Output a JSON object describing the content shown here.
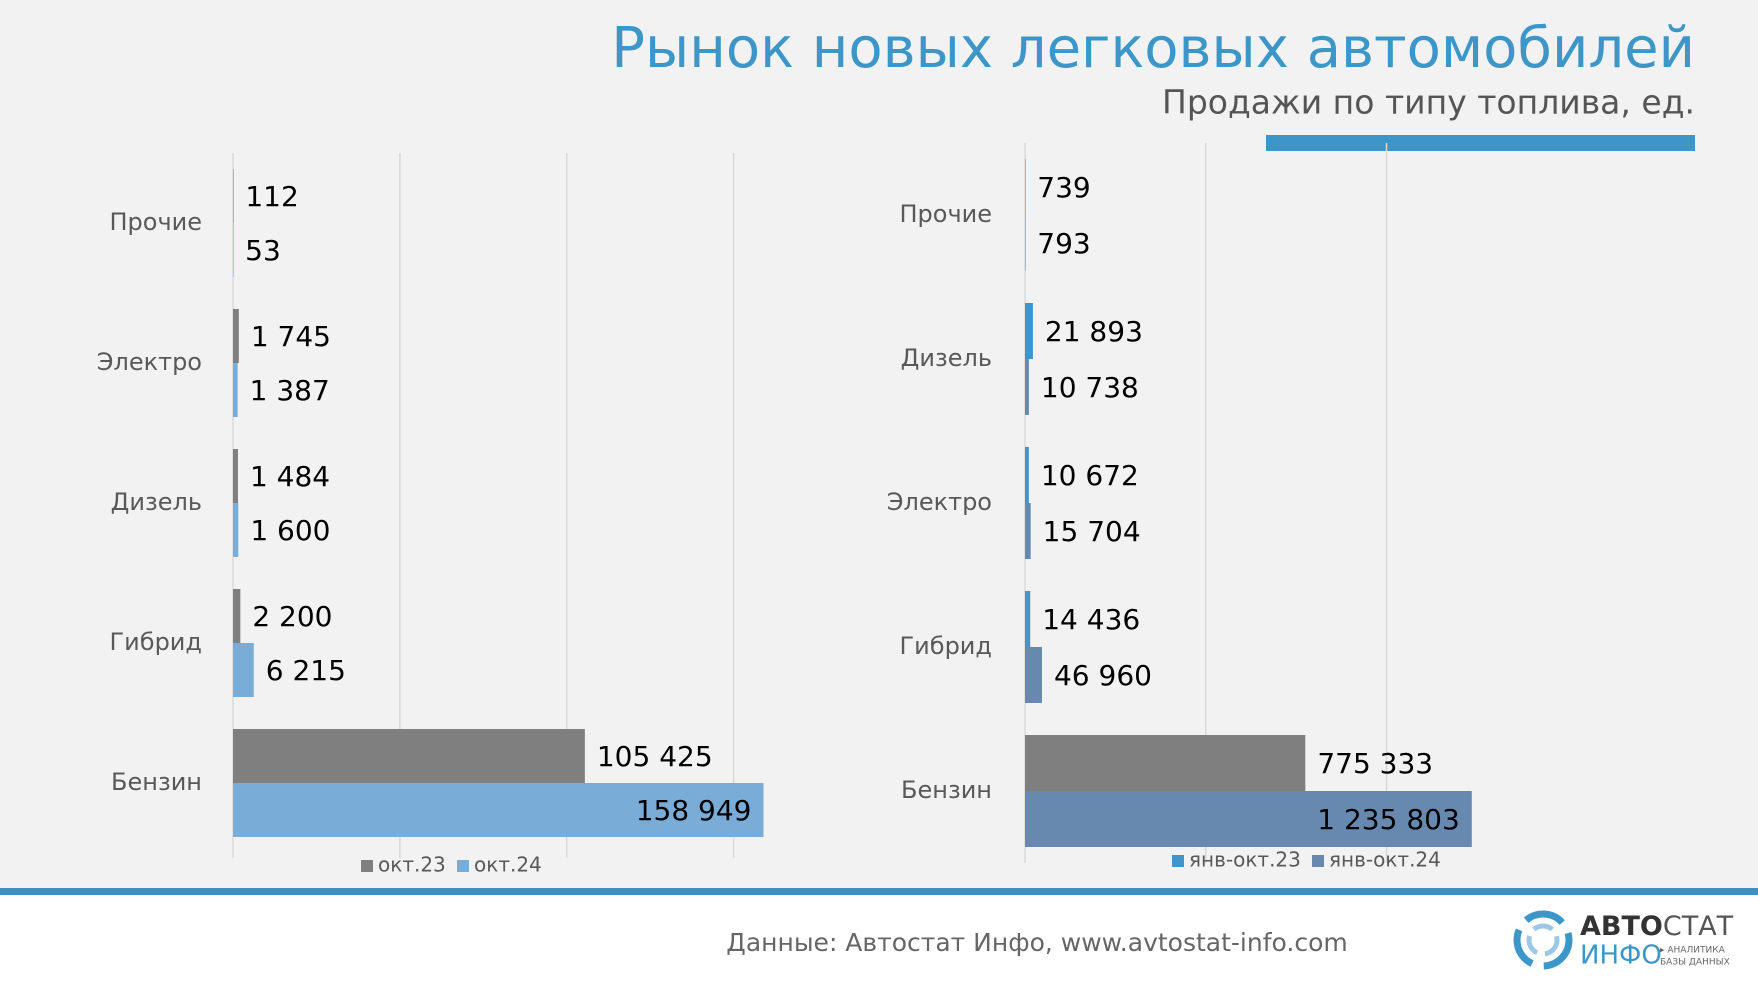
{
  "title": "Рынок новых легковых автомобилей",
  "subtitle": "Продажи по типу топлива, ед.",
  "source": "Данные: Автостат Инфо, www.avtostat-info.com",
  "logo": {
    "part1": "АВТО",
    "part2": "СТАТ",
    "part3": "ИНФО",
    "part4": "▸ АНАЛИТИКА",
    "part5": "БАЗЫ ДАННЫХ"
  },
  "chart_data": [
    {
      "type": "bar",
      "orientation": "horizontal",
      "categories": [
        "Прочие",
        "Электро",
        "Дизель",
        "Гибрид",
        "Бензин"
      ],
      "series": [
        {
          "name": "окт.23",
          "color": "#7f7f7f",
          "values": [
            112,
            1745,
            1484,
            2200,
            105425
          ],
          "value_labels": [
            "112",
            "1 745",
            "1 484",
            "2 200",
            "105 425"
          ]
        },
        {
          "name": "окт.24",
          "color": "#7aacd8",
          "values": [
            53,
            1387,
            1600,
            6215,
            158949
          ],
          "value_labels": [
            "53",
            "1 387",
            "1 600",
            "6 215",
            "158 949"
          ]
        }
      ],
      "xlim": [
        0,
        160000
      ],
      "xticks": [
        0,
        50000,
        100000,
        150000
      ],
      "grid": true,
      "legend": "bottom"
    },
    {
      "type": "bar",
      "orientation": "horizontal",
      "categories": [
        "Прочие",
        "Дизель",
        "Электро",
        "Гибрид",
        "Бензин"
      ],
      "series": [
        {
          "name": "янв-окт.23",
          "color": "#3f95cc",
          "colors": [
            "#3f95cc",
            "#3f95cc",
            "#3f95cc",
            "#3f95cc",
            "#7f7f7f"
          ],
          "values": [
            739,
            21893,
            10672,
            14436,
            775333
          ],
          "value_labels": [
            "739",
            "21 893",
            "10 672",
            "14 436",
            "775 333"
          ]
        },
        {
          "name": "янв-окт.24",
          "color": "#6789b0",
          "values": [
            793,
            10738,
            15704,
            46960,
            1235803
          ],
          "value_labels": [
            "793",
            "10 738",
            "15 704",
            "46 960",
            "1 235 803"
          ]
        }
      ],
      "xlim": [
        0,
        1300000
      ],
      "xticks": [
        0,
        500000,
        1000000
      ],
      "grid": true,
      "legend": "bottom"
    }
  ]
}
